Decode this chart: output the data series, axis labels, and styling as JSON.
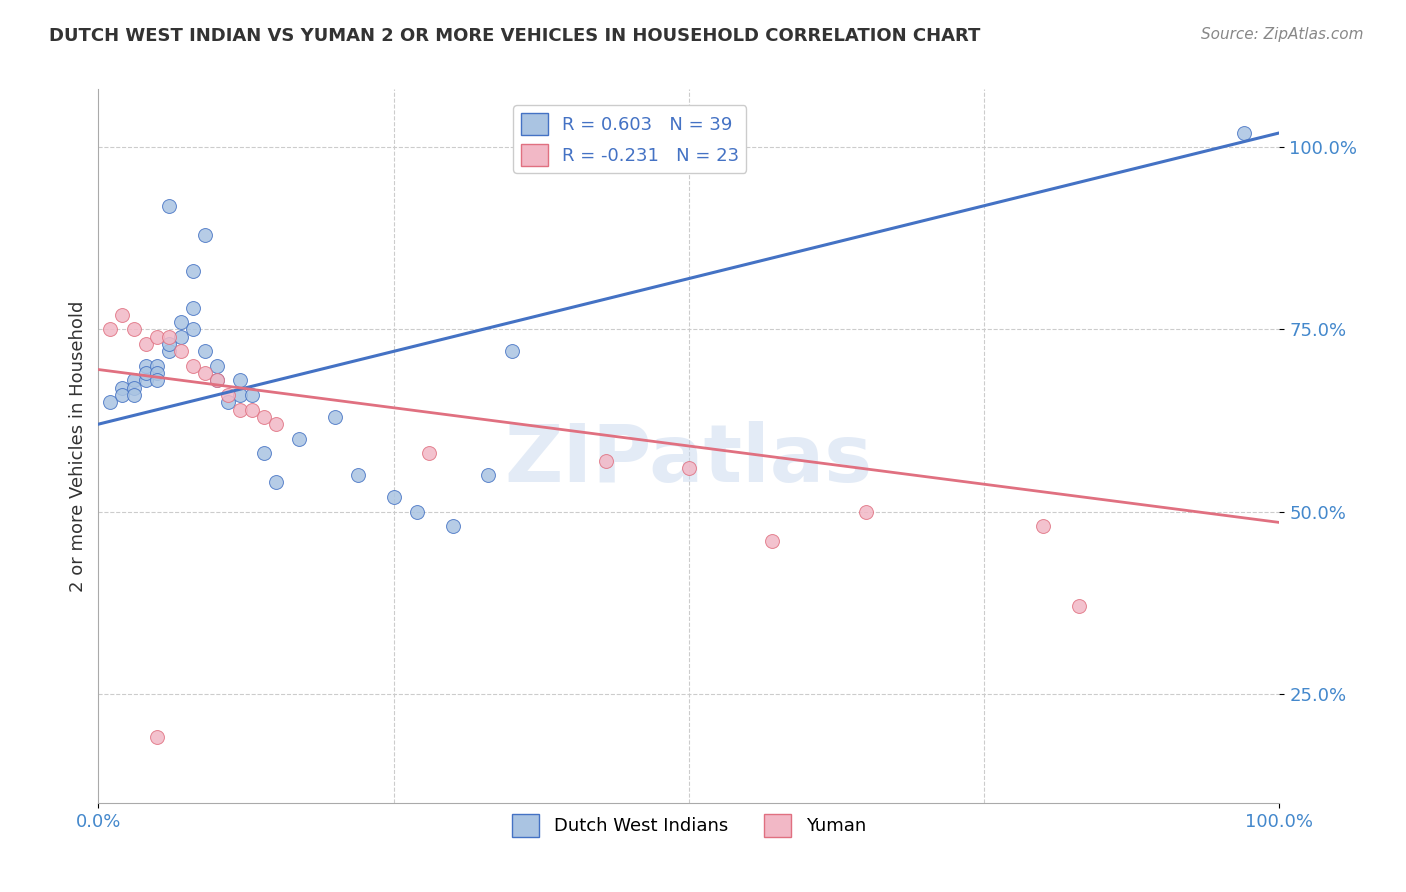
{
  "title": "DUTCH WEST INDIAN VS YUMAN 2 OR MORE VEHICLES IN HOUSEHOLD CORRELATION CHART",
  "source": "Source: ZipAtlas.com",
  "ylabel": "2 or more Vehicles in Household",
  "yticks": [
    "25.0%",
    "50.0%",
    "75.0%",
    "100.0%"
  ],
  "ytick_vals": [
    0.25,
    0.5,
    0.75,
    1.0
  ],
  "xlim": [
    0.0,
    1.0
  ],
  "ylim": [
    0.1,
    1.08
  ],
  "blue_scatter_x": [
    0.01,
    0.02,
    0.02,
    0.03,
    0.03,
    0.03,
    0.04,
    0.04,
    0.04,
    0.05,
    0.05,
    0.05,
    0.06,
    0.06,
    0.07,
    0.07,
    0.08,
    0.08,
    0.09,
    0.1,
    0.1,
    0.11,
    0.12,
    0.12,
    0.13,
    0.14,
    0.15,
    0.17,
    0.2,
    0.22,
    0.25,
    0.27,
    0.3,
    0.33,
    0.08,
    0.09,
    0.06,
    0.97,
    0.35
  ],
  "blue_scatter_y": [
    0.65,
    0.67,
    0.66,
    0.68,
    0.67,
    0.66,
    0.68,
    0.7,
    0.69,
    0.7,
    0.69,
    0.68,
    0.72,
    0.73,
    0.74,
    0.76,
    0.78,
    0.75,
    0.72,
    0.7,
    0.68,
    0.65,
    0.66,
    0.68,
    0.66,
    0.58,
    0.54,
    0.6,
    0.63,
    0.55,
    0.52,
    0.5,
    0.48,
    0.55,
    0.83,
    0.88,
    0.92,
    1.02,
    0.72
  ],
  "pink_scatter_x": [
    0.01,
    0.02,
    0.03,
    0.04,
    0.05,
    0.06,
    0.07,
    0.08,
    0.09,
    0.1,
    0.11,
    0.12,
    0.13,
    0.14,
    0.15,
    0.28,
    0.43,
    0.5,
    0.57,
    0.65,
    0.8,
    0.83,
    0.05
  ],
  "pink_scatter_y": [
    0.75,
    0.77,
    0.75,
    0.73,
    0.74,
    0.74,
    0.72,
    0.7,
    0.69,
    0.68,
    0.66,
    0.64,
    0.64,
    0.63,
    0.62,
    0.58,
    0.57,
    0.56,
    0.46,
    0.5,
    0.48,
    0.37,
    0.19
  ],
  "blue_color": "#aac4e2",
  "pink_color": "#f2b8c6",
  "blue_line_color": "#4472c4",
  "pink_line_color": "#e07080",
  "legend_blue_R": "R = 0.603",
  "legend_blue_N": "N = 39",
  "legend_pink_R": "R = -0.231",
  "legend_pink_N": "N = 23",
  "legend_label_blue": "Dutch West Indians",
  "legend_label_pink": "Yuman",
  "watermark": "ZIPatlas",
  "marker_size": 100,
  "blue_trend": [
    0.0,
    0.62,
    1.0,
    1.02
  ],
  "pink_trend": [
    0.0,
    0.695,
    1.0,
    0.485
  ]
}
